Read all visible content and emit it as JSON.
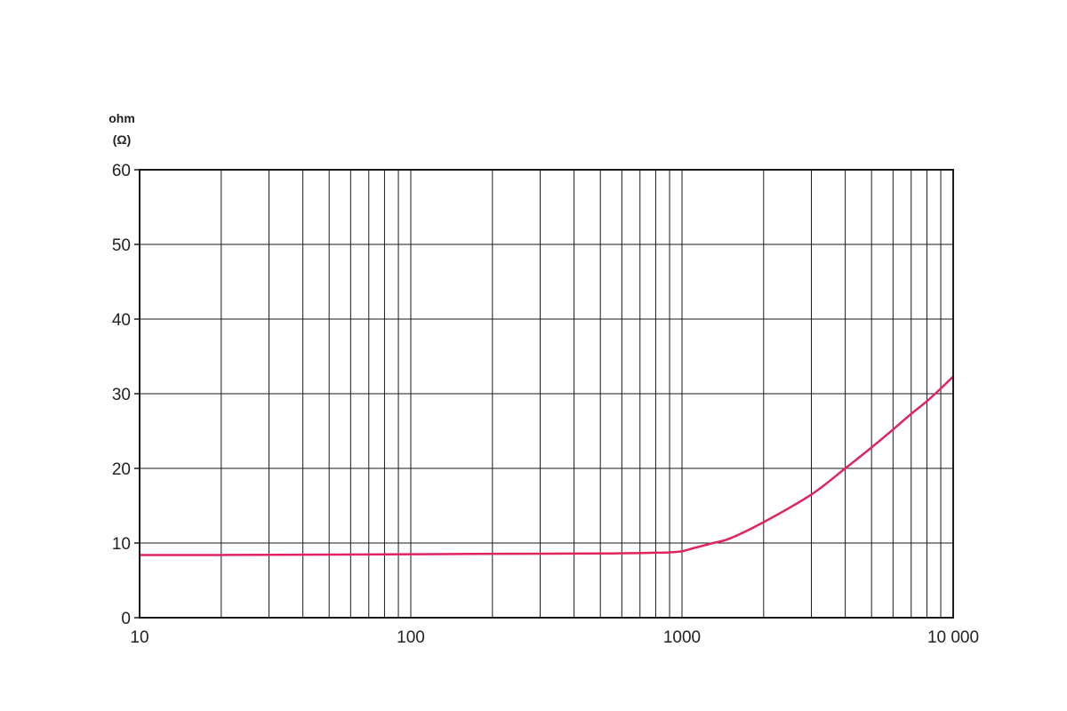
{
  "chart_data": {
    "type": "line",
    "ylabel": "ohm",
    "yunit": "(Ω)",
    "x_scale": "log",
    "xlim": [
      10,
      10000
    ],
    "ylim": [
      0,
      60
    ],
    "grid": true,
    "legend": "none",
    "x_ticks": [
      {
        "value": 10,
        "label": "10"
      },
      {
        "value": 100,
        "label": "100"
      },
      {
        "value": 1000,
        "label": "1000"
      },
      {
        "value": 10000,
        "label": "10 000"
      }
    ],
    "y_ticks": [
      {
        "value": 0,
        "label": "0"
      },
      {
        "value": 10,
        "label": "10"
      },
      {
        "value": 20,
        "label": "20"
      },
      {
        "value": 30,
        "label": "30"
      },
      {
        "value": 40,
        "label": "40"
      },
      {
        "value": 50,
        "label": "50"
      },
      {
        "value": 60,
        "label": "60"
      }
    ],
    "series": [
      {
        "color": "#e0245e",
        "points": [
          [
            10,
            8.4
          ],
          [
            20,
            8.4
          ],
          [
            50,
            8.45
          ],
          [
            100,
            8.5
          ],
          [
            200,
            8.55
          ],
          [
            500,
            8.6
          ],
          [
            800,
            8.7
          ],
          [
            900,
            8.75
          ],
          [
            1000,
            8.9
          ],
          [
            1100,
            9.3
          ],
          [
            1300,
            10.0
          ],
          [
            1500,
            10.6
          ],
          [
            2000,
            12.8
          ],
          [
            3000,
            16.5
          ],
          [
            4000,
            20.0
          ],
          [
            5000,
            22.8
          ],
          [
            6000,
            25.2
          ],
          [
            7000,
            27.3
          ],
          [
            8000,
            29.0
          ],
          [
            9000,
            30.7
          ],
          [
            10000,
            32.3
          ]
        ]
      }
    ]
  }
}
